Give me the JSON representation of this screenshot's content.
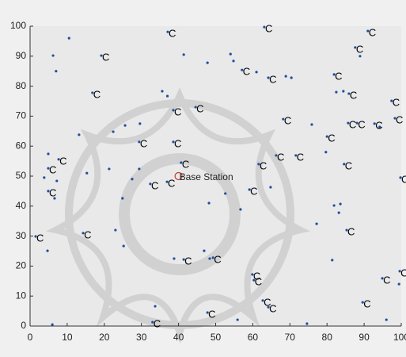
{
  "chart_data": {
    "type": "scatter",
    "xlim": [
      0,
      100
    ],
    "ylim": [
      0,
      100
    ],
    "xticks": [
      0,
      10,
      20,
      30,
      40,
      50,
      60,
      70,
      80,
      90,
      100
    ],
    "yticks": [
      0,
      10,
      20,
      30,
      40,
      50,
      60,
      70,
      80,
      90,
      100
    ],
    "series": [
      {
        "color": "#1f4e9c",
        "x": [
          10.5,
          6.2,
          7,
          41.4,
          47.8,
          54,
          54.8,
          35.6,
          37,
          61,
          68.9,
          70.4,
          82.5,
          84.4,
          88.9,
          13.2,
          25.6,
          29.6,
          22.4,
          75.9,
          79.7,
          94.2,
          4.9,
          3.8,
          15.3,
          21.3,
          29.4,
          24.9,
          27.5,
          6.6,
          7.2,
          48.2,
          52.6,
          56.7,
          64.8,
          81.9,
          83.2,
          83.6,
          77.2,
          23,
          25.2,
          4.7,
          38.8,
          46.9,
          48.4,
          81.4,
          99.4,
          33.7,
          55.9,
          74.6,
          96,
          6
        ],
        "values": [
          96,
          90.2,
          85,
          90.5,
          87.8,
          90.7,
          88.4,
          78.3,
          76.7,
          84.7,
          83.3,
          82.8,
          78,
          78.3,
          90,
          63.8,
          66.9,
          67.5,
          64.8,
          67.2,
          58,
          66.4,
          57.4,
          49.5,
          51,
          52.4,
          52.4,
          42.6,
          49,
          42.6,
          48.4,
          41,
          44.2,
          38.9,
          46.3,
          40.2,
          37.8,
          40.7,
          34.1,
          32,
          26.7,
          25.1,
          22.5,
          25.1,
          22.5,
          22,
          14,
          6.6,
          2.1,
          0.8,
          2.1,
          0.5
        ]
      },
      {
        "color": "#1f4e9c",
        "label": "C",
        "x": [
          37.1,
          63.1,
          19.2,
          91,
          87.6,
          57.1,
          64.2,
          81.9,
          16.8,
          85.9,
          97.4,
          44.6,
          38.6,
          68.2,
          85.7,
          88.1,
          92.8,
          98.3,
          80,
          29.4,
          38.6,
          66.3,
          71.6,
          61.6,
          84.6,
          7.7,
          4.9,
          40.7,
          99.8,
          32.4,
          36.9,
          59.1,
          4.9,
          1.5,
          14.3,
          85.3,
          41.4,
          49.3,
          59.9,
          60.3,
          99.6,
          94.9,
          62.7,
          64.2,
          89.6,
          47.8,
          33
        ],
        "values": [
          98.1,
          99.7,
          90.2,
          98.4,
          92.9,
          85.4,
          82.8,
          83.9,
          77.8,
          77.5,
          75.1,
          73,
          72,
          69,
          67.7,
          67.7,
          67.5,
          69.3,
          63.2,
          61.4,
          61.4,
          56.9,
          56.9,
          54,
          54,
          55.6,
          52.6,
          54.5,
          49.5,
          47.4,
          48.1,
          45.5,
          45,
          29.9,
          31,
          32,
          22.2,
          22.8,
          17.2,
          15.3,
          18.3,
          15.9,
          8.5,
          6.3,
          7.9,
          4.5,
          1.3
        ]
      }
    ],
    "annotation": {
      "x": 40,
      "y": 50,
      "text": "Base Station",
      "color": "#c0392b"
    }
  }
}
